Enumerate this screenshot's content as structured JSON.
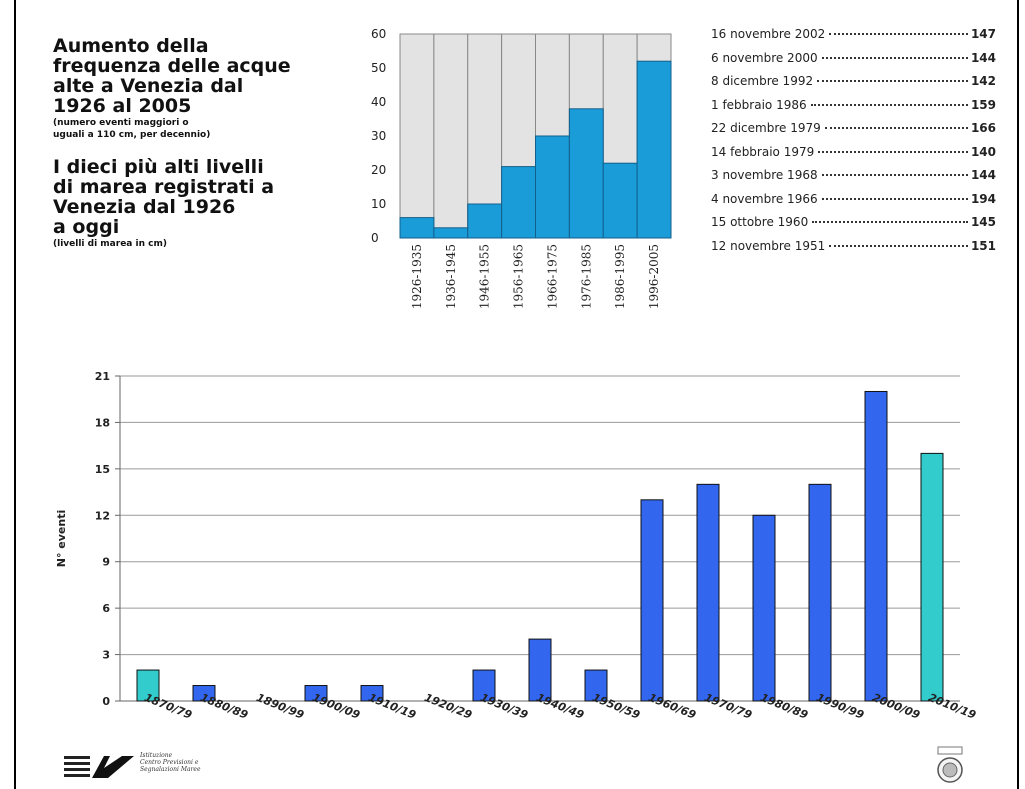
{
  "header": {
    "title_line1": "Aumento della",
    "title_line2": "frequenza delle acque",
    "title_line3": "alte a Venezia dal",
    "title_line4": "1926 al 2005",
    "note1_line1": "(numero eventi maggiori o",
    "note1_line2": "uguali a 110 cm, per decennio)",
    "title2_line1": "I dieci più alti livelli",
    "title2_line2": "di marea registrati a",
    "title2_line3": "Venezia dal 1926",
    "title2_line4": "a oggi",
    "note2": "(livelli di marea in cm)"
  },
  "records": [
    {
      "date": "16 novembre 2002",
      "value": "147"
    },
    {
      "date": "6 novembre 2000",
      "value": "144"
    },
    {
      "date": "8 dicembre 1992",
      "value": "142"
    },
    {
      "date": "1 febbraio 1986",
      "value": "159"
    },
    {
      "date": "22 dicembre 1979",
      "value": "166"
    },
    {
      "date": "14 febbraio 1979",
      "value": "140"
    },
    {
      "date": "3 novembre 1968",
      "value": "144"
    },
    {
      "date": "4 novembre 1966",
      "value": "194"
    },
    {
      "date": "15 ottobre 1960",
      "value": "145"
    },
    {
      "date": "12 novembre 1951",
      "value": "151"
    }
  ],
  "logo": {
    "line1": "Istituzione",
    "line2": "Centro Previsioni e",
    "line3": "Segnalazioni Maree"
  },
  "colors": {
    "bar1": "#1a9cd8",
    "panel_bg": "#e3e3e3",
    "bar2": "#3366ee",
    "bar2_highlight": "#33cccc"
  },
  "chart_data": [
    {
      "type": "bar",
      "categories": [
        "1926-1935",
        "1936-1945",
        "1946-1955",
        "1956-1965",
        "1966-1975",
        "1976-1985",
        "1986-1995",
        "1996-2005"
      ],
      "values": [
        6,
        3,
        10,
        21,
        30,
        38,
        22,
        52
      ],
      "ylim": [
        0,
        60
      ],
      "yticks": [
        0,
        10,
        20,
        30,
        40,
        50,
        60
      ],
      "grid": false
    },
    {
      "type": "bar",
      "categories": [
        "1870/79",
        "1880/89",
        "1890/99",
        "1900/09",
        "1910/19",
        "1920/29",
        "1930/39",
        "1940/49",
        "1950/59",
        "1960/69",
        "1970/79",
        "1980/89",
        "1990/99",
        "2000/09",
        "2010/19"
      ],
      "values": [
        2,
        1,
        0,
        1,
        1,
        0,
        2,
        4,
        2,
        13,
        14,
        12,
        14,
        20,
        16
      ],
      "highlighted": [
        "1870/79",
        "2010/19"
      ],
      "ylabel": "N° eventi",
      "ylim": [
        0,
        21
      ],
      "yticks": [
        0,
        3,
        6,
        9,
        12,
        15,
        18,
        21
      ],
      "grid": true
    }
  ]
}
